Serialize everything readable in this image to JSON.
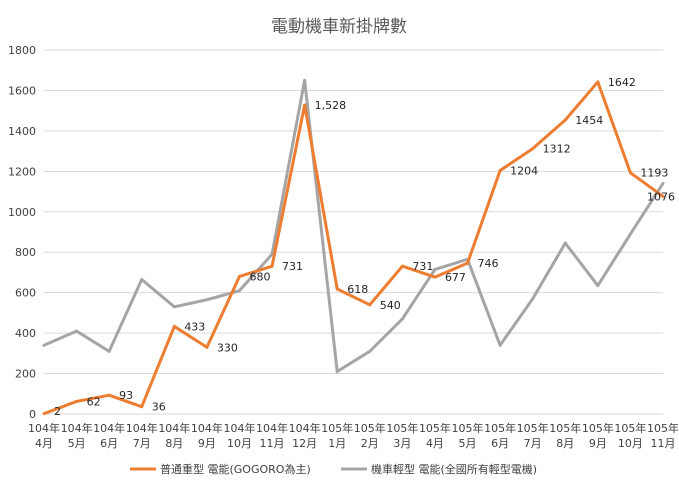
{
  "chart_data": {
    "type": "line",
    "title": "電動機車新掛牌數",
    "xlabel": "",
    "ylabel": "",
    "ylim": [
      0,
      1800
    ],
    "yticks": [
      "0",
      "200",
      "400",
      "600",
      "800",
      "1000",
      "1200",
      "1400",
      "1600",
      "1800"
    ],
    "categories": [
      [
        "104年",
        "4月"
      ],
      [
        "104年",
        "5月"
      ],
      [
        "104年",
        "6月"
      ],
      [
        "104年",
        "7月"
      ],
      [
        "104年",
        "8月"
      ],
      [
        "104年",
        "9月"
      ],
      [
        "104年",
        "10月"
      ],
      [
        "104年",
        "11月"
      ],
      [
        "104年",
        "12月"
      ],
      [
        "105年",
        "1月"
      ],
      [
        "105年",
        "2月"
      ],
      [
        "105年",
        "3月"
      ],
      [
        "105年",
        "4月"
      ],
      [
        "105年",
        "5月"
      ],
      [
        "105年",
        "6月"
      ],
      [
        "105年",
        "7月"
      ],
      [
        "105年",
        "8月"
      ],
      [
        "105年",
        "9月"
      ],
      [
        "105年",
        "10月"
      ],
      [
        "105年",
        "11月"
      ]
    ],
    "grid": true,
    "legend_position": "bottom",
    "series": [
      {
        "name": "普通重型 電能(GOGORO為主)",
        "color": "#ED7D31",
        "values": [
          2,
          62,
          93,
          36,
          433,
          330,
          680,
          731,
          1528,
          618,
          540,
          731,
          677,
          746,
          1204,
          1312,
          1454,
          1642,
          1193,
          1076
        ],
        "labels": [
          "2",
          "62",
          "93",
          "36",
          "433",
          "330",
          "680",
          "731",
          "1,528",
          "618",
          "540",
          "731",
          "677",
          "746",
          "1204",
          "1312",
          "1454",
          "1642",
          "1193",
          "1076"
        ]
      },
      {
        "name": "機車輕型 電能(全國所有輕型電機)",
        "color": "#A5A5A5",
        "values": [
          340,
          410,
          310,
          665,
          530,
          565,
          610,
          790,
          1650,
          210,
          310,
          470,
          715,
          765,
          340,
          570,
          845,
          635,
          890,
          1140
        ]
      }
    ]
  }
}
